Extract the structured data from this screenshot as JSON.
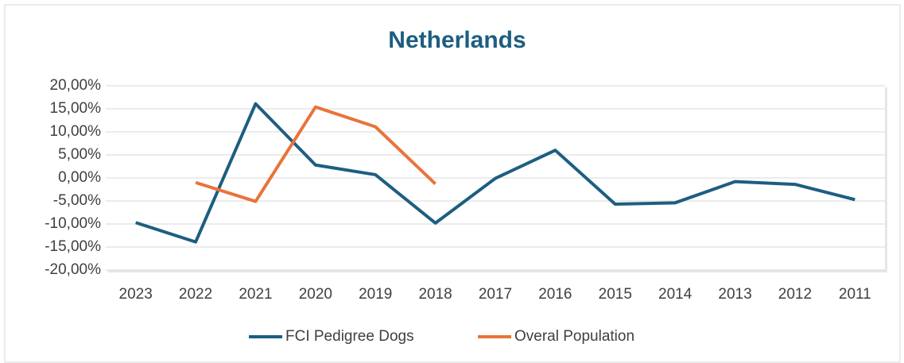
{
  "chart_data": {
    "type": "line",
    "title": "Netherlands",
    "categories": [
      "2023",
      "2022",
      "2021",
      "2020",
      "2019",
      "2018",
      "2017",
      "2016",
      "2015",
      "2014",
      "2013",
      "2012",
      "2011"
    ],
    "series": [
      {
        "name": "FCI Pedigree Dogs",
        "color": "#1d5e80",
        "values": [
          -9.7,
          -13.9,
          16.1,
          2.8,
          0.7,
          -9.8,
          -0.1,
          6.0,
          -5.7,
          -5.4,
          -0.8,
          -1.4,
          -4.7
        ]
      },
      {
        "name": "Overal Population",
        "color": "#e8743b",
        "values": [
          null,
          -1.0,
          -5.1,
          15.4,
          11.1,
          -1.3,
          null,
          null,
          null,
          null,
          null,
          null,
          null
        ]
      }
    ],
    "ylim": [
      -20,
      20
    ],
    "yticks": [
      {
        "value": -20,
        "label": "-20,00%"
      },
      {
        "value": -15,
        "label": "-15,00%"
      },
      {
        "value": -10,
        "label": "-10,00%"
      },
      {
        "value": -5,
        "label": "-5,00%"
      },
      {
        "value": 0,
        "label": "0,00%"
      },
      {
        "value": 5,
        "label": "5,00%"
      },
      {
        "value": 10,
        "label": "10,00%"
      },
      {
        "value": 15,
        "label": "15,00%"
      },
      {
        "value": 20,
        "label": "20,00%"
      }
    ],
    "grid": true,
    "legend": "bottom"
  }
}
